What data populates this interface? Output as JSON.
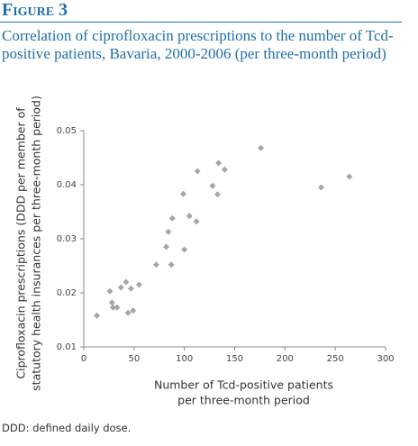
{
  "figure_label": "Figure 3",
  "chart_data": {
    "type": "scatter",
    "title": "Correlation of ciprofloxacin prescriptions to the number of Tcd-positive patients, Bavaria, 2000-2006 (per three-month period)",
    "x_label": [
      "Number of Tcd-positive patients",
      "per three-month period"
    ],
    "y_label": [
      "Ciprofloxacin prescriptions (DDD per member of",
      "statutory health insurances per three-month period)"
    ],
    "x": [
      13,
      26,
      28,
      29,
      33,
      37,
      42,
      44,
      47,
      49,
      55,
      72,
      82,
      84,
      87,
      88,
      99,
      100,
      105,
      112,
      113,
      128,
      133,
      134,
      140,
      176,
      236,
      264
    ],
    "values": [
      0.0158,
      0.0203,
      0.0182,
      0.0173,
      0.0173,
      0.021,
      0.022,
      0.0163,
      0.0208,
      0.0167,
      0.0215,
      0.0252,
      0.0285,
      0.0313,
      0.0252,
      0.0338,
      0.0383,
      0.028,
      0.0342,
      0.0332,
      0.0425,
      0.0398,
      0.0382,
      0.044,
      0.0428,
      0.0468,
      0.0395,
      0.0415
    ],
    "color": "#a6a6a6",
    "xlim": [
      0,
      300
    ],
    "xticks": [
      0,
      50,
      100,
      150,
      200,
      250,
      300
    ],
    "ylim": [
      0.01,
      0.05
    ],
    "yticks": [
      0.01,
      0.02,
      0.03,
      0.04,
      0.05
    ]
  },
  "footnote": "DDD: defined daily dose."
}
